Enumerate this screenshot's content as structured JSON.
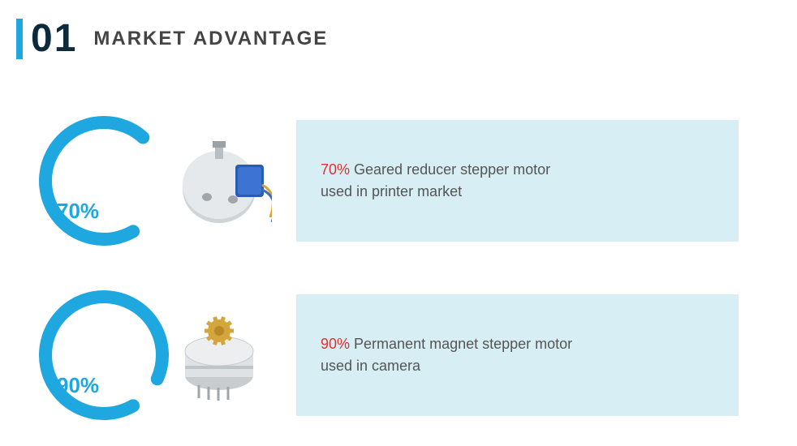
{
  "header": {
    "accent_color": "#1fa8e0",
    "number": "01",
    "number_color": "#0c2a3b",
    "title": "MARKET ADVANTAGE",
    "title_color": "#444"
  },
  "rows": [
    {
      "percent_label": "70%",
      "percent_value": 70,
      "gauge_color": "#1fa8e0",
      "gauge_bg": "#ffffff",
      "label_color": "#1fa8e0",
      "product_kind": "geared",
      "desc_highlight": "70%",
      "desc_highlight_color": "#e03030",
      "desc_text_1": " Geared reducer stepper motor",
      "desc_text_2": "used in printer market",
      "box_bg": "#d6eef4"
    },
    {
      "percent_label": "90%",
      "percent_value": 90,
      "gauge_color": "#1fa8e0",
      "gauge_bg": "#ffffff",
      "label_color": "#1fa8e0",
      "product_kind": "pm",
      "desc_highlight": "90%",
      "desc_highlight_color": "#e03030",
      "desc_text_1": " Permanent magnet stepper motor",
      "desc_text_2": "used in camera",
      "box_bg": "#d6eef4"
    }
  ],
  "style": {
    "gauge_stroke_width": 16,
    "gauge_radius": 72,
    "gauge_start_angle_deg": 150,
    "arrowhead_size": 10
  }
}
